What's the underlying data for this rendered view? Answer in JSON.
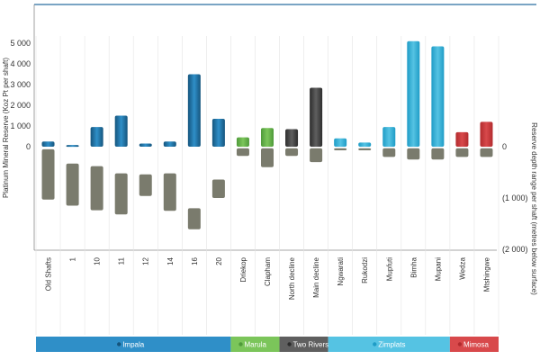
{
  "chart_data": {
    "type": "bar",
    "ylabel_left": "Platinum Mineral Reserve (Koz Pt per shaft)",
    "ylabel_right": "Reserve depth range per shaft (metres below surface)",
    "left_ticks": [
      "5 000",
      "4 000",
      "3 000",
      "2 000",
      "1 000",
      "0"
    ],
    "left_tick_values": [
      5000,
      4000,
      3000,
      2000,
      1000,
      0
    ],
    "right_ticks": [
      "0",
      "(1 000)",
      "(2 000)"
    ],
    "right_tick_values": [
      0,
      -1000,
      -2000
    ],
    "ylim_reserve": [
      0,
      5000
    ],
    "ylim_depth": [
      -2000,
      0
    ],
    "categories": [
      "Old Shafts",
      "1",
      "10",
      "11",
      "12",
      "14",
      "16",
      "20",
      "Driekop",
      "Clapham",
      "North decline",
      "Main decline",
      "Ngwarati",
      "Rukodzi",
      "Mupfuti",
      "Bimha",
      "Mupani",
      "Wedza",
      "Mtshingwe"
    ],
    "group_of_category": [
      "Impala",
      "Impala",
      "Impala",
      "Impala",
      "Impala",
      "Impala",
      "Impala",
      "Impala",
      "Marula",
      "Marula",
      "Two Rivers",
      "Two Rivers",
      "Zimplats",
      "Zimplats",
      "Zimplats",
      "Zimplats",
      "Zimplats",
      "Mimosa",
      "Mimosa"
    ],
    "reserve_koz": [
      250,
      80,
      950,
      1500,
      150,
      250,
      3500,
      1350,
      450,
      900,
      850,
      2850,
      400,
      200,
      950,
      5100,
      4850,
      700,
      1200
    ],
    "depth_ranges_m": [
      [
        -50,
        -1030
      ],
      [
        -330,
        -1150
      ],
      [
        -380,
        -1240
      ],
      [
        -520,
        -1320
      ],
      [
        -540,
        -960
      ],
      [
        -520,
        -1250
      ],
      [
        -1200,
        -1610
      ],
      [
        -640,
        -1000
      ],
      [
        -30,
        -180
      ],
      [
        -30,
        -400
      ],
      [
        -30,
        -180
      ],
      [
        -30,
        -300
      ],
      [
        -30,
        -70
      ],
      [
        -30,
        -70
      ],
      [
        -30,
        -200
      ],
      [
        -30,
        -250
      ],
      [
        -30,
        -250
      ],
      [
        -30,
        -200
      ],
      [
        -30,
        -200
      ]
    ],
    "groups": [
      {
        "name": "Impala",
        "color": "#2f8fc8",
        "dark": "#15557d"
      },
      {
        "name": "Marula",
        "color": "#7bc55a",
        "dark": "#4f9a3a"
      },
      {
        "name": "Two Rivers",
        "color": "#5f5f5f",
        "dark": "#2d2d2d"
      },
      {
        "name": "Zimplats",
        "color": "#55c3e3",
        "dark": "#1f9cc6"
      },
      {
        "name": "Mimosa",
        "color": "#d8494b",
        "dark": "#b22b2e"
      }
    ],
    "depth_bar_color": "#7a7b6d",
    "grid": "vertical"
  }
}
